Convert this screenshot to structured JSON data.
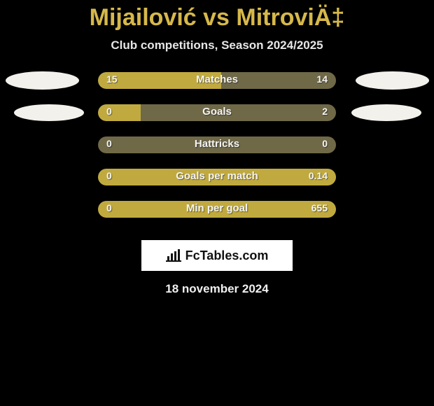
{
  "background_color": "#000000",
  "accent_color": "#d6b84a",
  "bar_track_color": "#6f6948",
  "bar_fill_color": "#c0aa3f",
  "text_color": "#f0f0f0",
  "ellipse_color": "#f3f1ec",
  "title": "Mijailović vs MitroviÄ‡",
  "subtitle": "Club competitions, Season 2024/2025",
  "date": "18 november 2024",
  "brand": "FcTables.com",
  "rows": [
    {
      "label": "Matches",
      "left_val": "15",
      "right_val": "14",
      "left_pct": 51.7,
      "right_pct": 0,
      "mode": "left"
    },
    {
      "label": "Goals",
      "left_val": "0",
      "right_val": "2",
      "left_pct": 18,
      "right_pct": 82,
      "mode": "right"
    },
    {
      "label": "Hattricks",
      "left_val": "0",
      "right_val": "0",
      "left_pct": 0,
      "right_pct": 0,
      "mode": "none"
    },
    {
      "label": "Goals per match",
      "left_val": "0",
      "right_val": "0.14",
      "left_pct": 0,
      "right_pct": 0,
      "mode": "full"
    },
    {
      "label": "Min per goal",
      "left_val": "0",
      "right_val": "655",
      "left_pct": 0,
      "right_pct": 0,
      "mode": "full"
    }
  ]
}
